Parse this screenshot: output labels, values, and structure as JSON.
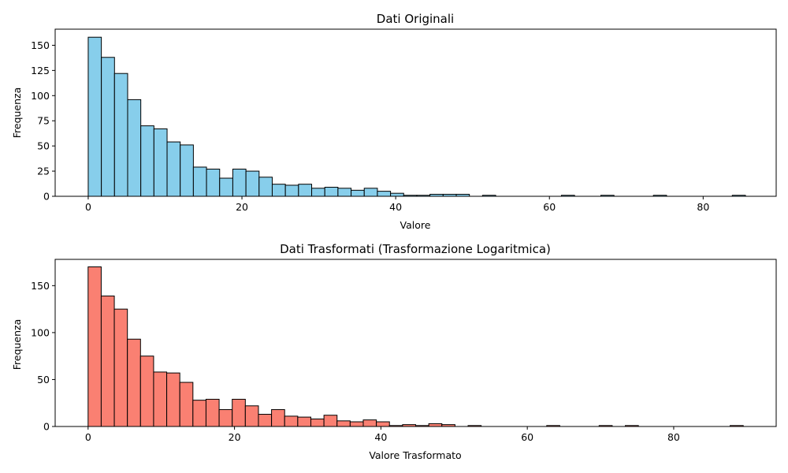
{
  "figure_background": "#ffffff",
  "chart_data": [
    {
      "type": "bar",
      "title": "Dati Originali",
      "xlabel": "Valore",
      "ylabel": "Frequenza",
      "xlim": [
        -4.3,
        89.5
      ],
      "ylim": [
        0,
        166
      ],
      "xticks": [
        0,
        20,
        40,
        60,
        80
      ],
      "yticks": [
        0,
        25,
        50,
        75,
        100,
        125,
        150
      ],
      "bar_color": "#87ceeb",
      "edge_color": "#000000",
      "grid": false,
      "legend": "none",
      "bin_start": 0,
      "bin_width": 1.71,
      "values": [
        158,
        138,
        122,
        96,
        70,
        67,
        54,
        51,
        29,
        27,
        18,
        27,
        25,
        19,
        12,
        11,
        12,
        8,
        9,
        8,
        6,
        8,
        5,
        3,
        1,
        1,
        2,
        2,
        2,
        0,
        1,
        0,
        0,
        0,
        0,
        0,
        1,
        0,
        0,
        1,
        0,
        0,
        0,
        1,
        0,
        0,
        0,
        0,
        0,
        1
      ]
    },
    {
      "type": "bar",
      "title": "Dati Trasformati (Trasformazione Logaritmica)",
      "xlabel": "Valore Trasformato",
      "ylabel": "Frequenza",
      "xlim": [
        -4.5,
        94
      ],
      "ylim": [
        0,
        178
      ],
      "xticks": [
        0,
        20,
        40,
        60,
        80
      ],
      "yticks": [
        0,
        50,
        100,
        150
      ],
      "bar_color": "#fa8072",
      "edge_color": "#000000",
      "grid": false,
      "legend": "none",
      "bin_start": 0,
      "bin_width": 1.79,
      "values": [
        170,
        139,
        125,
        93,
        75,
        58,
        57,
        47,
        28,
        29,
        18,
        29,
        22,
        13,
        18,
        11,
        10,
        8,
        12,
        6,
        5,
        7,
        5,
        1,
        2,
        1,
        3,
        2,
        0,
        1,
        0,
        0,
        0,
        0,
        0,
        1,
        0,
        0,
        0,
        1,
        0,
        1,
        0,
        0,
        0,
        0,
        0,
        0,
        0,
        1
      ]
    }
  ]
}
